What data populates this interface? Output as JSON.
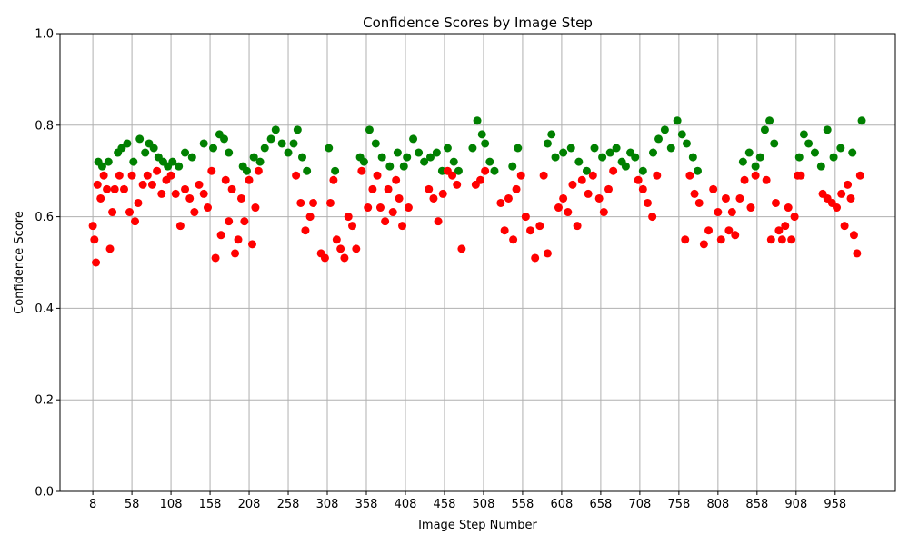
{
  "chart_data": {
    "type": "scatter",
    "title": "Confidence Scores by Image Step",
    "xlabel": "Image Step Number",
    "ylabel": "Confidence Score",
    "xlim": [
      -34,
      1035
    ],
    "ylim": [
      0.0,
      1.0
    ],
    "xticks": [
      8,
      58,
      108,
      158,
      208,
      258,
      308,
      358,
      408,
      458,
      508,
      558,
      608,
      658,
      708,
      758,
      808,
      858,
      908,
      958
    ],
    "yticks": [
      0.0,
      0.2,
      0.4,
      0.6,
      0.8,
      1.0
    ],
    "ytick_labels": [
      "0.0",
      "0.2",
      "0.4",
      "0.6",
      "0.8",
      "1.0"
    ],
    "grid": true,
    "colors": {
      "high": "#008000",
      "low": "#ff0000",
      "grid": "#b0b0b0"
    },
    "threshold": 0.7,
    "series": [
      {
        "key": "green",
        "color": "#008000",
        "x": [
          15,
          20,
          28,
          40,
          45,
          52,
          60,
          68,
          75,
          80,
          86,
          92,
          98,
          104,
          110,
          118,
          126,
          135,
          150,
          162,
          170,
          176,
          182,
          200,
          205,
          214,
          222,
          228,
          236,
          242,
          250,
          258,
          265,
          270,
          276,
          282,
          310,
          318,
          350,
          355,
          362,
          370,
          378,
          388,
          398,
          406,
          410,
          418,
          425,
          432,
          440,
          448,
          455,
          462,
          470,
          476,
          494,
          500,
          506,
          510,
          516,
          522,
          545,
          552,
          590,
          595,
          600,
          610,
          620,
          630,
          640,
          650,
          660,
          670,
          678,
          685,
          690,
          696,
          702,
          712,
          725,
          732,
          740,
          748,
          756,
          762,
          768,
          776,
          782,
          840,
          848,
          856,
          862,
          868,
          874,
          880,
          912,
          918,
          924,
          932,
          940,
          948,
          956,
          965,
          980,
          992
        ],
        "y": [
          0.72,
          0.71,
          0.72,
          0.74,
          0.75,
          0.76,
          0.72,
          0.77,
          0.74,
          0.76,
          0.75,
          0.73,
          0.72,
          0.71,
          0.72,
          0.71,
          0.74,
          0.73,
          0.76,
          0.75,
          0.78,
          0.77,
          0.74,
          0.71,
          0.7,
          0.73,
          0.72,
          0.75,
          0.77,
          0.79,
          0.76,
          0.74,
          0.76,
          0.79,
          0.73,
          0.7,
          0.75,
          0.7,
          0.73,
          0.72,
          0.79,
          0.76,
          0.73,
          0.71,
          0.74,
          0.71,
          0.73,
          0.77,
          0.74,
          0.72,
          0.73,
          0.74,
          0.7,
          0.75,
          0.72,
          0.7,
          0.75,
          0.81,
          0.78,
          0.76,
          0.72,
          0.7,
          0.71,
          0.75,
          0.76,
          0.78,
          0.73,
          0.74,
          0.75,
          0.72,
          0.7,
          0.75,
          0.73,
          0.74,
          0.75,
          0.72,
          0.71,
          0.74,
          0.73,
          0.7,
          0.74,
          0.77,
          0.79,
          0.75,
          0.81,
          0.78,
          0.76,
          0.73,
          0.7,
          0.72,
          0.74,
          0.71,
          0.73,
          0.79,
          0.81,
          0.76,
          0.73,
          0.78,
          0.76,
          0.74,
          0.71,
          0.79,
          0.73,
          0.75,
          0.74,
          0.81
        ]
      },
      {
        "key": "red",
        "color": "#ff0000",
        "x": [
          8,
          10,
          12,
          14,
          18,
          22,
          26,
          30,
          33,
          36,
          42,
          48,
          55,
          58,
          62,
          66,
          72,
          78,
          84,
          90,
          96,
          102,
          108,
          114,
          120,
          126,
          132,
          138,
          144,
          150,
          155,
          160,
          165,
          172,
          178,
          182,
          186,
          190,
          194,
          198,
          202,
          208,
          212,
          216,
          220,
          268,
          274,
          280,
          286,
          290,
          300,
          305,
          312,
          316,
          320,
          325,
          330,
          335,
          340,
          345,
          352,
          360,
          366,
          372,
          376,
          382,
          386,
          392,
          396,
          400,
          404,
          412,
          438,
          444,
          450,
          456,
          462,
          468,
          474,
          480,
          498,
          504,
          510,
          530,
          535,
          540,
          546,
          550,
          556,
          562,
          568,
          574,
          580,
          585,
          590,
          604,
          610,
          616,
          622,
          628,
          634,
          642,
          648,
          656,
          662,
          668,
          674,
          706,
          712,
          718,
          724,
          730,
          766,
          772,
          778,
          784,
          790,
          796,
          802,
          808,
          812,
          818,
          822,
          826,
          830,
          836,
          842,
          850,
          856,
          870,
          876,
          882,
          886,
          890,
          894,
          898,
          902,
          906,
          910,
          914,
          942,
          948,
          954,
          960,
          966,
          970,
          974,
          978,
          982,
          986,
          990
        ],
        "y": [
          0.58,
          0.55,
          0.5,
          0.67,
          0.64,
          0.69,
          0.66,
          0.53,
          0.61,
          0.66,
          0.69,
          0.66,
          0.61,
          0.69,
          0.59,
          0.63,
          0.67,
          0.69,
          0.67,
          0.7,
          0.65,
          0.68,
          0.69,
          0.65,
          0.58,
          0.66,
          0.64,
          0.61,
          0.67,
          0.65,
          0.62,
          0.7,
          0.51,
          0.56,
          0.68,
          0.59,
          0.66,
          0.52,
          0.55,
          0.64,
          0.59,
          0.68,
          0.54,
          0.62,
          0.7,
          0.69,
          0.63,
          0.57,
          0.6,
          0.63,
          0.52,
          0.51,
          0.63,
          0.68,
          0.55,
          0.53,
          0.51,
          0.6,
          0.58,
          0.53,
          0.7,
          0.62,
          0.66,
          0.69,
          0.62,
          0.59,
          0.66,
          0.61,
          0.68,
          0.64,
          0.58,
          0.62,
          0.66,
          0.64,
          0.59,
          0.65,
          0.7,
          0.69,
          0.67,
          0.53,
          0.67,
          0.68,
          0.7,
          0.63,
          0.57,
          0.64,
          0.55,
          0.66,
          0.69,
          0.6,
          0.57,
          0.51,
          0.58,
          0.69,
          0.52,
          0.62,
          0.64,
          0.61,
          0.67,
          0.58,
          0.68,
          0.65,
          0.69,
          0.64,
          0.61,
          0.66,
          0.7,
          0.68,
          0.66,
          0.63,
          0.6,
          0.69,
          0.55,
          0.69,
          0.65,
          0.63,
          0.54,
          0.57,
          0.66,
          0.61,
          0.55,
          0.64,
          0.57,
          0.61,
          0.56,
          0.64,
          0.68,
          0.62,
          0.69,
          0.68,
          0.55,
          0.63,
          0.57,
          0.55,
          0.58,
          0.62,
          0.55,
          0.6,
          0.69,
          0.69,
          0.65,
          0.64,
          0.63,
          0.62,
          0.65,
          0.58,
          0.67,
          0.64,
          0.56,
          0.52,
          0.69
        ]
      }
    ]
  }
}
